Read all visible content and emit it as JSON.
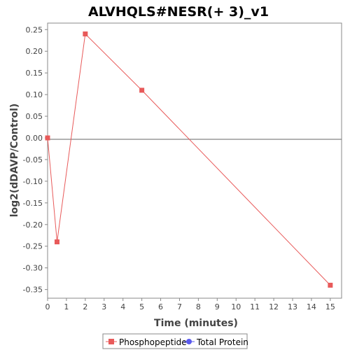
{
  "chart_data": {
    "type": "line",
    "title": "ALVHQLS#NESR(+ 3)_v1",
    "xlabel": "Time (minutes)",
    "ylabel": "log2(dDAVP/Control)",
    "xlim": [
      0,
      15.6
    ],
    "ylim": [
      -0.37,
      0.265
    ],
    "xticks": [
      0,
      1,
      2,
      3,
      4,
      5,
      6,
      7,
      8,
      9,
      10,
      11,
      12,
      13,
      14,
      15
    ],
    "yticks": [
      0.25,
      0.2,
      0.15,
      0.1,
      0.05,
      0.0,
      -0.05,
      -0.1,
      -0.15,
      -0.2,
      -0.25,
      -0.3,
      -0.35
    ],
    "ytick_labels": [
      "0.25",
      "0.20",
      "0.15",
      "0.10",
      "0.05",
      "0.00",
      "-0.05",
      "-0.10",
      "-0.15",
      "-0.20",
      "-0.25",
      "-0.30",
      "-0.35"
    ],
    "zero_line": true,
    "grid": false,
    "legend_position": "bottom",
    "series": [
      {
        "name": "Phosphopeptide",
        "color": "#e85a5a",
        "marker": "square",
        "x": [
          0,
          0.5,
          2,
          5,
          15
        ],
        "y": [
          0.0,
          -0.24,
          0.24,
          0.11,
          -0.34
        ]
      },
      {
        "name": "Total Protein",
        "color": "#5a5aee",
        "marker": "circle",
        "x": [],
        "y": []
      }
    ]
  }
}
